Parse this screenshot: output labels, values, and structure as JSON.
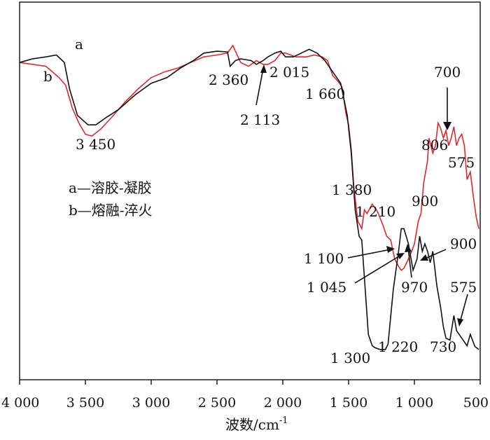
{
  "chart_data": {
    "type": "line",
    "xlabel": "波数/cm",
    "xlabel_sup": "-1",
    "ylabel": "",
    "xlim": [
      4000,
      500
    ],
    "x_reversed": true,
    "ylim": [
      0,
      100
    ],
    "y_ticks_shown": false,
    "grid": false,
    "x_ticks": [
      {
        "value": 4000,
        "label": "4 000"
      },
      {
        "value": 3500,
        "label": "3 500"
      },
      {
        "value": 3000,
        "label": "3 000"
      },
      {
        "value": 2500,
        "label": "2 500"
      },
      {
        "value": 2000,
        "label": "2 000"
      },
      {
        "value": 1500,
        "label": "1 500"
      },
      {
        "value": 1000,
        "label": "1 000"
      },
      {
        "value": 500,
        "label": "500"
      }
    ],
    "legend": {
      "placement": "left",
      "entries": [
        {
          "key": "a",
          "text": "a—溶胶-凝胶"
        },
        {
          "key": "b",
          "text": "b—熔融-淬火"
        }
      ]
    },
    "series": [
      {
        "name": "a",
        "color": "#111111",
        "x": [
          4000,
          3900,
          3800,
          3720,
          3660,
          3620,
          3560,
          3480,
          3420,
          3340,
          3250,
          3120,
          3000,
          2880,
          2780,
          2680,
          2600,
          2500,
          2420,
          2400,
          2360,
          2320,
          2240,
          2200,
          2150,
          2113,
          2060,
          2015,
          1980,
          1920,
          1860,
          1800,
          1740,
          1680,
          1660,
          1600,
          1560,
          1510,
          1480,
          1450,
          1420,
          1400,
          1380,
          1350,
          1320,
          1300,
          1260,
          1220,
          1200,
          1160,
          1120,
          1100,
          1080,
          1045,
          1010,
          980,
          960,
          940,
          920,
          900,
          880,
          860,
          830,
          800,
          780,
          760,
          730,
          700,
          680,
          640,
          600,
          575,
          540,
          510
        ],
        "y": [
          84,
          85,
          85.5,
          86,
          84,
          77,
          70,
          67.5,
          67.5,
          69.5,
          71.5,
          75.5,
          78.5,
          80,
          82.5,
          84.5,
          86.5,
          87,
          86.8,
          83,
          84.5,
          85,
          84.5,
          83.5,
          84.5,
          85.5,
          86.5,
          87,
          85.5,
          85.5,
          86.5,
          87.5,
          86.5,
          84.5,
          83.5,
          80.5,
          78.5,
          70,
          60,
          45,
          38,
          37,
          27,
          12,
          9,
          8.5,
          8,
          8,
          9.5,
          24,
          34,
          40,
          40,
          36,
          29,
          32,
          38,
          34,
          36,
          34,
          31,
          34,
          25,
          19,
          14,
          11,
          10.5,
          17,
          13,
          11,
          9,
          12,
          8.8,
          8
        ]
      },
      {
        "name": "b",
        "color": "#e4262b",
        "x": [
          4000,
          3900,
          3800,
          3700,
          3650,
          3600,
          3550,
          3500,
          3450,
          3380,
          3300,
          3200,
          3100,
          3000,
          2900,
          2800,
          2700,
          2600,
          2500,
          2420,
          2380,
          2360,
          2320,
          2260,
          2200,
          2150,
          2113,
          2060,
          2015,
          1980,
          1900,
          1820,
          1760,
          1700,
          1660,
          1620,
          1580,
          1550,
          1520,
          1500,
          1480,
          1460,
          1430,
          1400,
          1380,
          1360,
          1320,
          1280,
          1240,
          1210,
          1180,
          1150,
          1120,
          1100,
          1080,
          1045,
          1020,
          1000,
          970,
          950,
          930,
          900,
          890,
          860,
          840,
          820,
          806,
          800,
          780,
          760,
          740,
          720,
          700,
          680,
          660,
          640,
          620,
          600,
          575,
          550,
          530,
          510
        ],
        "y": [
          84,
          83.5,
          83,
          80,
          78,
          72,
          68,
          65,
          64.5,
          66.5,
          69.5,
          73.5,
          77,
          80,
          81.5,
          82.5,
          84,
          85.5,
          86,
          86.5,
          88.5,
          87,
          84,
          83,
          84.5,
          83.5,
          83.5,
          84.5,
          86.5,
          86.5,
          85.5,
          85.5,
          86,
          85.5,
          84.5,
          80.5,
          79,
          77.5,
          70.5,
          67.5,
          61,
          51,
          42,
          40,
          45,
          44,
          46.5,
          44.5,
          41,
          38,
          37,
          32,
          30,
          29,
          29.5,
          32,
          34,
          36,
          42,
          44,
          52,
          58,
          64,
          60,
          62,
          68,
          67,
          66.5,
          64,
          66,
          62,
          64,
          67,
          62,
          64,
          65,
          62,
          53,
          55,
          48,
          43,
          40
        ]
      }
    ],
    "annotations": [
      {
        "text": "3 450",
        "series": "b",
        "x": 3450,
        "y": 64.5
      },
      {
        "text": "2 360",
        "series": "a",
        "x": 2360,
        "y": 84
      },
      {
        "text": "2 113",
        "series": "a",
        "x": 2113,
        "y": 85,
        "arrow": true
      },
      {
        "text": "2 015",
        "series": "a",
        "x": 2015,
        "y": 87
      },
      {
        "text": "1 660",
        "series": "a",
        "x": 1660,
        "y": 83.5
      },
      {
        "text": "1 380",
        "series": "b",
        "x": 1380,
        "y": 44
      },
      {
        "text": "1 210",
        "series": "b",
        "x": 1210,
        "y": 38
      },
      {
        "text": "900",
        "series": "b",
        "x": 900,
        "y": 60
      },
      {
        "text": "806",
        "series": "b",
        "x": 806,
        "y": 66.5
      },
      {
        "text": "700",
        "series": "b",
        "x": 700,
        "y": 67,
        "arrow": true
      },
      {
        "text": "575",
        "series": "b",
        "x": 575,
        "y": 55
      },
      {
        "text": "1 100",
        "series": "a",
        "x": 1100,
        "y": 34,
        "arrow": true
      },
      {
        "text": "1 045",
        "series": "a",
        "x": 1045,
        "y": 34,
        "arrow": true
      },
      {
        "text": "970",
        "series": "a",
        "x": 970,
        "y": 38,
        "arrow": true
      },
      {
        "text": "900",
        "series": "a",
        "x": 900,
        "y": 31,
        "arrow": true
      },
      {
        "text": "575",
        "series": "a",
        "x": 575,
        "y": 12,
        "arrow": true
      },
      {
        "text": "1 300",
        "series": "a",
        "x": 1300,
        "y": 8.5
      },
      {
        "text": "1 220",
        "series": "a",
        "x": 1220,
        "y": 8
      },
      {
        "text": "730",
        "series": "a",
        "x": 730,
        "y": 10.5
      }
    ]
  }
}
